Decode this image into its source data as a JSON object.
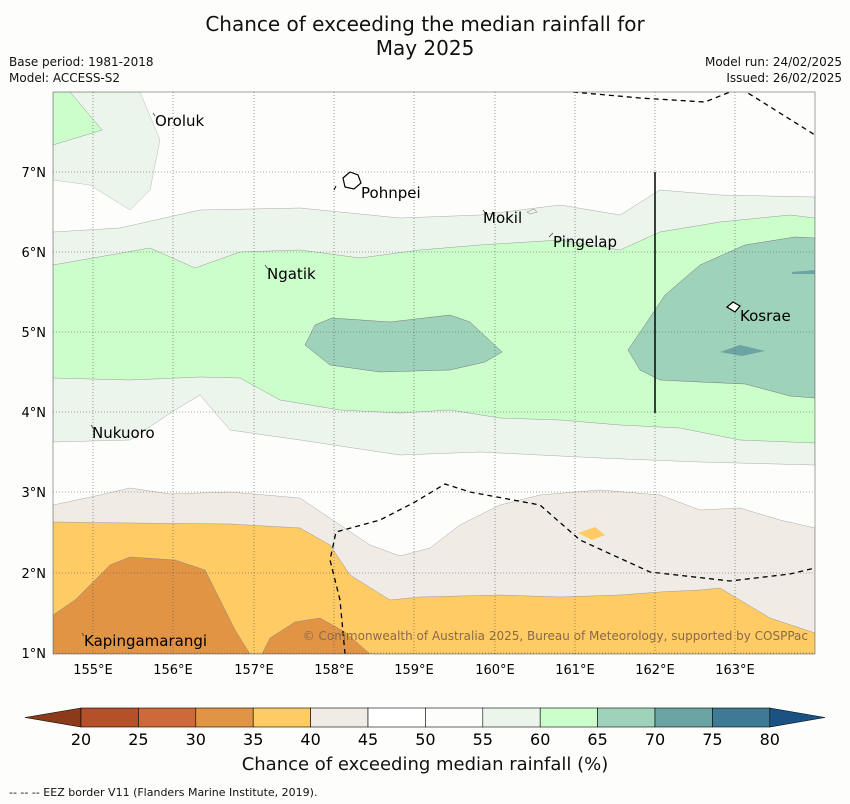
{
  "title_line1": "Chance of exceeding the median rainfall for",
  "title_line2": "May 2025",
  "base_period": "Base period: 1981-2018",
  "model": "Model: ACCESS-S2",
  "model_run": "Model run: 24/02/2025",
  "issued": "Issued: 26/02/2025",
  "copyright": "© Commonwealth of Australia 2025, Bureau of Meteorology, supported by COSPPac",
  "footer": "--  --  -- EEZ border V11 (Flanders Marine Institute, 2019).",
  "lon_ticks": [
    "155°E",
    "156°E",
    "157°E",
    "158°E",
    "159°E",
    "160°E",
    "161°E",
    "162°E",
    "163°E"
  ],
  "lat_ticks": [
    "7°N",
    "6°N",
    "5°N",
    "4°N",
    "3°N",
    "2°N",
    "1°N"
  ],
  "places": [
    {
      "name": "Oroluk"
    },
    {
      "name": "Pohnpei"
    },
    {
      "name": "Mokil"
    },
    {
      "name": "Pingelap"
    },
    {
      "name": "Ngatik"
    },
    {
      "name": "Kosrae"
    },
    {
      "name": "Nukuoro"
    },
    {
      "name": "Kapingamarangi"
    }
  ],
  "colorbar": {
    "title": "Chance of exceeding median rainfall (%)",
    "ticks": [
      "20",
      "25",
      "30",
      "35",
      "40",
      "45",
      "50",
      "55",
      "60",
      "65",
      "70",
      "75",
      "80"
    ],
    "colors": [
      "#8b3a1a",
      "#b5502a",
      "#d0693a",
      "#e29445",
      "#fecb64",
      "#f1ebe5",
      "#ffffff",
      "#fdfefc",
      "#ebf5eb",
      "#cbfecb",
      "#9ed2ba",
      "#6ca3a3",
      "#3e7a94",
      "#1a5283"
    ]
  }
}
